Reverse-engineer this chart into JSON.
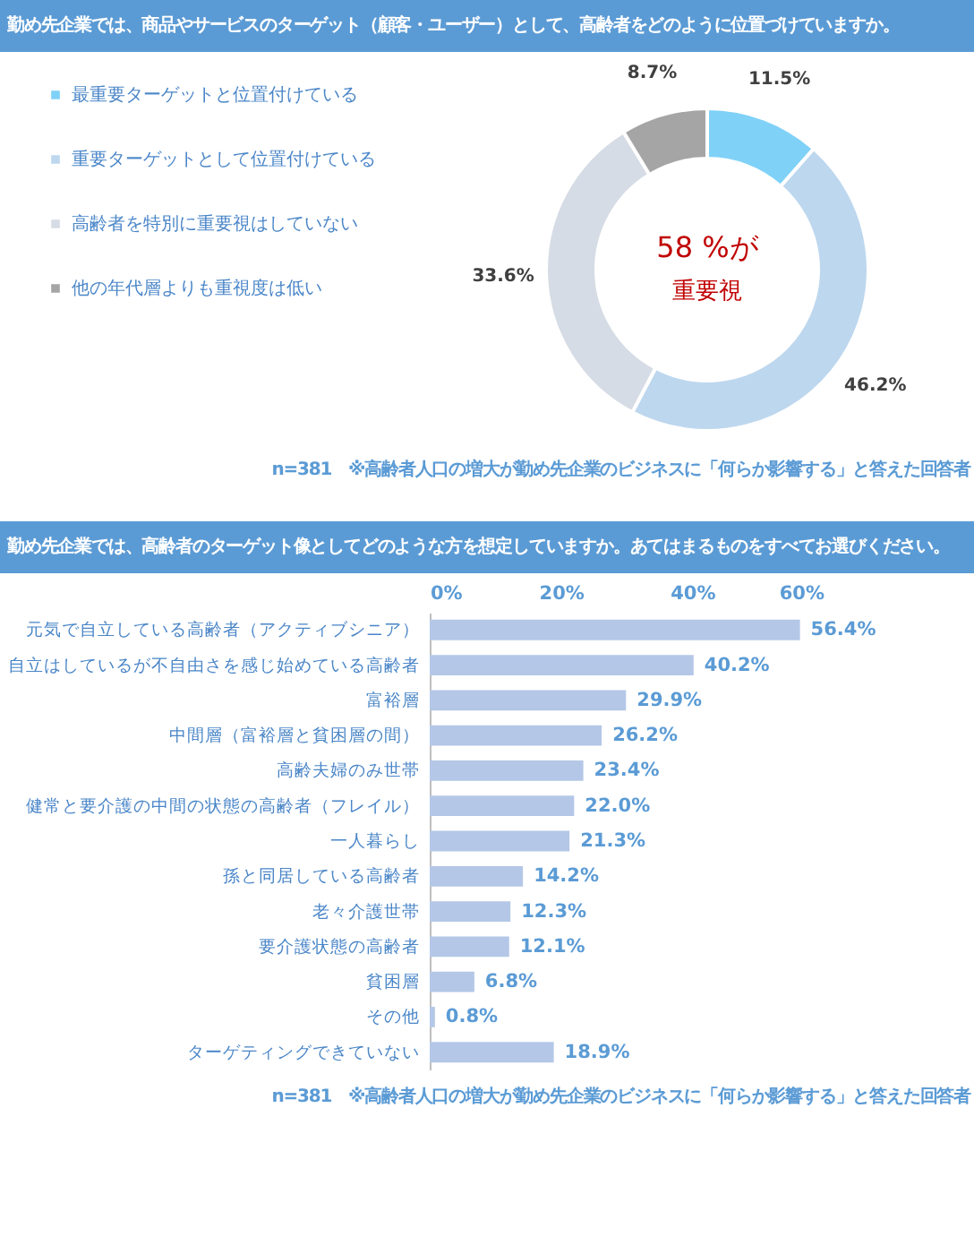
{
  "chart_data": [
    {
      "type": "donut",
      "title": "勤め先企業では、商品やサービスのターゲット（顧客・ユーザー）として、高齢者をどのように位置づけていますか。",
      "categories": [
        "最重要ターゲットと位置付けている",
        "重要ターゲットとして位置付けている",
        "高齢者を特別に重要視はしていない",
        "他の年代層よりも重視度は低い"
      ],
      "values": [
        11.5,
        46.2,
        33.6,
        8.7
      ],
      "colors": [
        "#7fd1f7",
        "#bdd7ee",
        "#d6dce5",
        "#a5a5a5"
      ],
      "value_labels": [
        "11.5%",
        "46.2%",
        "33.6%",
        "8.7%"
      ],
      "legend": "left",
      "annotations": [
        "58 %が",
        "重要視",
        "n=381　※高齢者人口の増大が勤め先企業のビジネスに「何らか影響する」と答えた回答者"
      ]
    },
    {
      "type": "bar",
      "orientation": "horizontal",
      "title": "勤め先企業では、高齢者のターゲット像としてどのような方を想定していますか。あてはまるものをすべてお選びください。",
      "categories": [
        "元気で自立している高齢者（アクティブシニア）",
        "自立はしているが不自由さを感じ始めている高齢者",
        "富裕層",
        "中間層（富裕層と貧困層の間）",
        "高齢夫婦のみ世帯",
        "健常と要介護の中間の状態の高齢者（フレイル）",
        "一人暮らし",
        "孫と同居している高齢者",
        "老々介護世帯",
        "要介護状態の高齢者",
        "貧困層",
        "その他",
        "ターゲティングできていない"
      ],
      "values": [
        56.4,
        40.2,
        29.9,
        26.2,
        23.4,
        22.0,
        21.3,
        14.2,
        12.3,
        12.1,
        6.8,
        0.8,
        18.9
      ],
      "color": "#b4c7e7",
      "value_labels": [
        "56.4%",
        "40.2%",
        "29.9%",
        "26.2%",
        "23.4%",
        "22.0%",
        "21.3%",
        "14.2%",
        "12.3%",
        "12.1%",
        "6.8%",
        "0.8%",
        "18.9%"
      ],
      "xlim": [
        0,
        60
      ],
      "xticks": [
        {
          "value": 0,
          "label": "0%"
        },
        {
          "value": 20,
          "label": "20%"
        },
        {
          "value": 40,
          "label": "40%"
        },
        {
          "value": 60,
          "label": "60%"
        }
      ],
      "grid": false,
      "annotations": [
        "n=381　※高齢者人口の増大が勤め先企業のビジネスに「何らか影響する」と答えた回答者"
      ]
    }
  ]
}
